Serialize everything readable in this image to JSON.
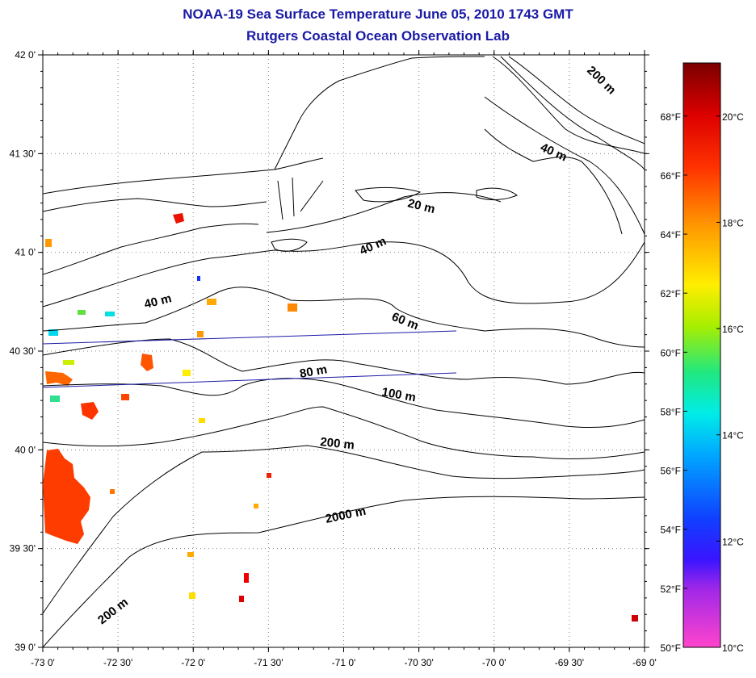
{
  "title": "NOAA-19 Sea Surface Temperature June 05, 2010 1743 GMT",
  "subtitle": "Rutgers Coastal Ocean Observation Lab",
  "map": {
    "lon_ticks": [
      "-73 0'",
      "-72 30'",
      "-72 0'",
      "-71 30'",
      "-71 0'",
      "-70 30'",
      "-70 0'",
      "-69 30'",
      "-69 0'"
    ],
    "lat_ticks": [
      "39 0'",
      "39 30'",
      "40 0'",
      "40 30'",
      "41 0'",
      "41 30'",
      "42 0'"
    ],
    "lon_range": [
      -73,
      -69
    ],
    "lat_range": [
      39,
      42
    ],
    "grid": "dotted",
    "isobath_labels": [
      {
        "text": "20 m"
      },
      {
        "text": "40 m"
      },
      {
        "text": "40 m"
      },
      {
        "text": "40 m"
      },
      {
        "text": "60 m"
      },
      {
        "text": "80 m"
      },
      {
        "text": "100 m"
      },
      {
        "text": "200 m"
      },
      {
        "text": "200 m"
      },
      {
        "text": "200 m"
      },
      {
        "text": "2000 m"
      }
    ],
    "land_color": "#ffffff",
    "contour_color": "#000000",
    "track_color": "#1a1aa6"
  },
  "colorbar": {
    "fahrenheit_labels": [
      "68°F",
      "66°F",
      "64°F",
      "62°F",
      "60°F",
      "58°F",
      "56°F",
      "54°F",
      "52°F",
      "50°F"
    ],
    "celsius_labels": [
      "20°C",
      "18°C",
      "16°C",
      "14°C",
      "12°C",
      "10°C"
    ],
    "range_c": [
      10,
      21
    ],
    "colors": [
      "#ff44cc",
      "#7a22ee",
      "#1020ff",
      "#00a8ff",
      "#00f0ee",
      "#30e860",
      "#ccee00",
      "#ffee00",
      "#ff9900",
      "#ff3300",
      "#dd0000",
      "#880000"
    ]
  }
}
